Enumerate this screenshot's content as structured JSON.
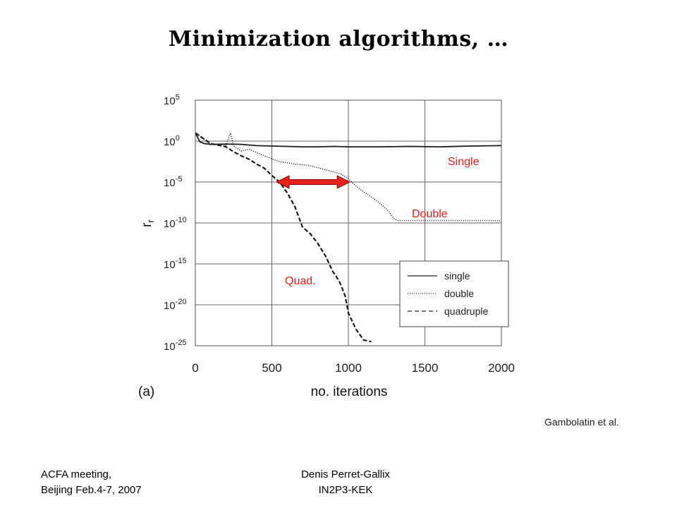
{
  "title": "Minimization algorithms, …",
  "credit": "Gambolatin et al.",
  "footer": {
    "left_line1": "ACFA meeting,",
    "left_line2": "Beijing Feb.4-7, 2007",
    "center_line1": "Denis Perret-Gallix",
    "center_line2": "IN2P3-KEK"
  },
  "chart_data": {
    "type": "line",
    "panel_label": "(a)",
    "xlabel": "no. iterations",
    "ylabel": "r",
    "ylabel_sub": "r",
    "y_scale": "log10",
    "xlim": [
      0,
      2000
    ],
    "ylim_exponent": [
      -25,
      5
    ],
    "grid": true,
    "x_ticks": [
      "0",
      "500",
      "1000",
      "1500",
      "2000"
    ],
    "y_tick_exponents": [
      "5",
      "0",
      "-5",
      "-10",
      "-15",
      "-20",
      "-25"
    ],
    "y_tick_base": "10",
    "legend": {
      "position": "bottom-right",
      "entries": [
        "single",
        "double",
        "quadruple"
      ]
    },
    "annotations": {
      "single": "Single",
      "double": "Double",
      "quad": "Quad."
    },
    "arrow": {
      "x_from": 530,
      "x_to": 1010,
      "log10_y": -5,
      "color": "#e8201b"
    },
    "series": [
      {
        "name": "single",
        "style": "solid",
        "x": [
          0,
          30,
          60,
          100,
          200,
          300,
          400,
          500,
          600,
          700,
          800,
          900,
          1000,
          1200,
          1400,
          1600,
          1800,
          2000
        ],
        "log10_y": [
          1.0,
          -0.1,
          -0.3,
          -0.4,
          -0.35,
          -0.4,
          -0.55,
          -0.6,
          -0.65,
          -0.7,
          -0.7,
          -0.65,
          -0.7,
          -0.7,
          -0.65,
          -0.7,
          -0.6,
          -0.55
        ]
      },
      {
        "name": "double",
        "style": "dotted",
        "x": [
          0,
          100,
          200,
          230,
          250,
          300,
          350,
          450,
          550,
          650,
          750,
          850,
          950,
          1000,
          1050,
          1100,
          1150,
          1200,
          1230,
          1260,
          1300,
          1320,
          1500,
          2000
        ],
        "log10_y": [
          1.0,
          -0.4,
          -0.5,
          1.0,
          -0.6,
          -1.2,
          -1.0,
          -1.8,
          -2.5,
          -2.8,
          -3.0,
          -3.5,
          -4.0,
          -4.6,
          -5.5,
          -6.2,
          -6.8,
          -7.5,
          -8.0,
          -8.5,
          -9.5,
          -9.7,
          -9.7,
          -9.7
        ]
      },
      {
        "name": "quadruple",
        "style": "dashed",
        "x": [
          0,
          100,
          200,
          250,
          300,
          350,
          400,
          450,
          500,
          550,
          600,
          650,
          700,
          750,
          800,
          850,
          900,
          920,
          950,
          980,
          1000,
          1050,
          1100,
          1150
        ],
        "log10_y": [
          1.0,
          -0.3,
          -0.7,
          -1.3,
          -1.8,
          -2.2,
          -2.8,
          -3.3,
          -4.2,
          -5.0,
          -6.3,
          -8.0,
          -10.5,
          -11.3,
          -12.5,
          -14.0,
          -16.0,
          -16.5,
          -17.5,
          -19.0,
          -21.0,
          -23.0,
          -24.3,
          -24.5
        ]
      }
    ]
  }
}
